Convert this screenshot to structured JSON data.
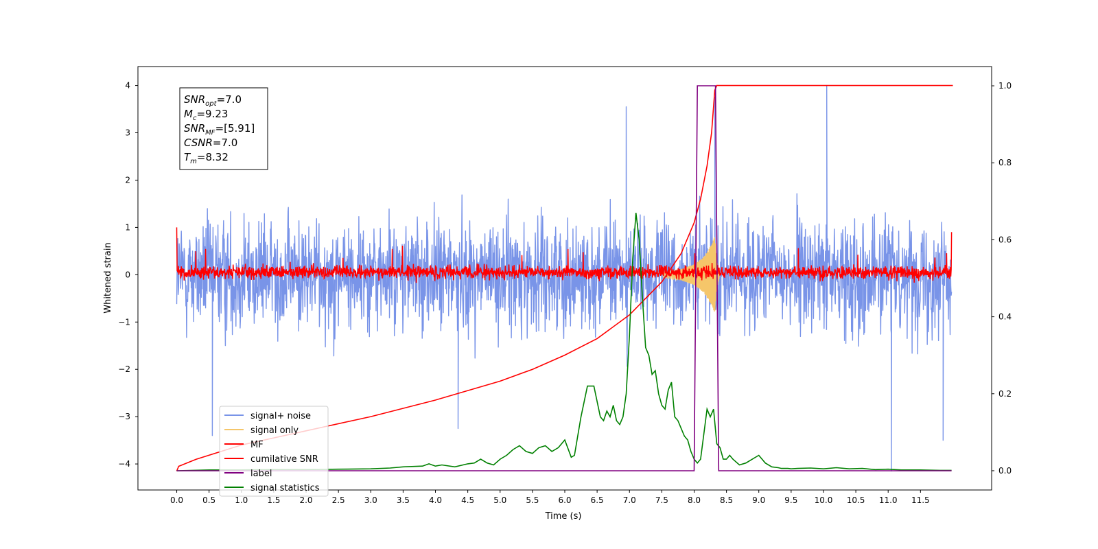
{
  "chart_data": {
    "type": "line",
    "xlabel": "Time (s)",
    "ylabel": "Whitened strain",
    "xlim": [
      -0.6,
      12.6
    ],
    "ylim": [
      -4.55,
      4.4
    ],
    "y2lim": [
      -0.05,
      1.05
    ],
    "x_ticks": [
      "0.0",
      "0.5",
      "1.0",
      "1.5",
      "2.0",
      "2.5",
      "3.0",
      "3.5",
      "4.0",
      "4.5",
      "5.0",
      "5.5",
      "6.0",
      "6.5",
      "7.0",
      "7.5",
      "8.0",
      "8.5",
      "9.0",
      "9.5",
      "10.0",
      "10.5",
      "11.0",
      "11.5"
    ],
    "x_tick_values": [
      0,
      0.5,
      1,
      1.5,
      2,
      2.5,
      3,
      3.5,
      4,
      4.5,
      5,
      5.5,
      6,
      6.5,
      7,
      7.5,
      8,
      8.5,
      9,
      9.5,
      10,
      10.5,
      11,
      11.5
    ],
    "y_ticks": [
      "−4",
      "−3",
      "−2",
      "−1",
      "0",
      "1",
      "2",
      "3",
      "4"
    ],
    "y_tick_values": [
      -4,
      -3,
      -2,
      -1,
      0,
      1,
      2,
      3,
      4
    ],
    "y2_ticks": [
      "0.0",
      "0.2",
      "0.4",
      "0.6",
      "0.8",
      "1.0"
    ],
    "y2_tick_values": [
      0,
      0.2,
      0.4,
      0.6,
      0.8,
      1.0
    ],
    "grid": false,
    "legend_position": "lower-left",
    "legend": [
      {
        "label": "signal+ noise",
        "color": "#7994e8"
      },
      {
        "label": "signal only",
        "color": "#f5c66a"
      },
      {
        "label": "MF",
        "color": "#ff0000"
      },
      {
        "label": "cumilative SNR",
        "color": "#ff0000"
      },
      {
        "label": "label",
        "color": "#800080"
      },
      {
        "label": "signal statistics",
        "color": "#008000"
      }
    ],
    "annotation": {
      "lines": [
        {
          "main": "SNR",
          "sub": "opt",
          "value": "=7.0"
        },
        {
          "main": "M",
          "sub": "c",
          "value": "=9.23"
        },
        {
          "main": "SNR",
          "sub": "MF",
          "value": "=[5.91]"
        },
        {
          "main": "CSNR",
          "sub": "",
          "value": "=7.0"
        },
        {
          "main": "T",
          "sub": "m",
          "value": "=8.32"
        }
      ]
    },
    "series": [
      {
        "name": "signal+ noise",
        "axis": "left",
        "color": "#7994e8",
        "x_range": [
          0,
          11.98
        ],
        "envelope_typical": [
          -1.6,
          1.6
        ],
        "extremes": [
          [
            0.55,
            -3.4
          ],
          [
            4.35,
            -3.25
          ],
          [
            6.95,
            3.55
          ],
          [
            8.32,
            3.75
          ],
          [
            10.05,
            4.0
          ],
          [
            11.05,
            -4.15
          ],
          [
            11.85,
            -3.5
          ]
        ]
      },
      {
        "name": "signal only",
        "axis": "left",
        "color": "#f5c66a",
        "x": [
          7.5,
          7.8,
          8.0,
          8.15,
          8.25,
          8.3,
          8.32,
          8.35,
          8.4
        ],
        "amplitude": [
          0.05,
          0.12,
          0.22,
          0.38,
          0.6,
          0.8,
          0.8,
          0.3,
          0.0
        ]
      },
      {
        "name": "MF",
        "axis": "left",
        "color": "#ff0000",
        "x_range": [
          0,
          11.98
        ],
        "envelope_typical": [
          -0.2,
          0.3
        ]
      },
      {
        "name": "cumilative SNR",
        "axis": "left",
        "color": "#ff0000",
        "x": [
          0,
          0.03,
          0.3,
          1,
          2,
          3,
          4,
          5,
          5.5,
          6,
          6.5,
          7,
          7.5,
          7.8,
          8.0,
          8.1,
          8.2,
          8.27,
          8.32,
          8.35,
          12.0
        ],
        "y": [
          -4.15,
          -4.05,
          -3.9,
          -3.6,
          -3.3,
          -3.0,
          -2.65,
          -2.25,
          -2.0,
          -1.7,
          -1.35,
          -0.85,
          -0.15,
          0.45,
          1.1,
          1.6,
          2.3,
          3.0,
          3.9,
          4.0,
          4.0
        ]
      },
      {
        "name": "label",
        "axis": "right",
        "color": "#800080",
        "x": [
          0,
          8.0,
          8.05,
          8.33,
          8.38,
          11.98
        ],
        "y": [
          0,
          0,
          1,
          1,
          0,
          0
        ]
      },
      {
        "name": "signal statistics",
        "axis": "right",
        "color": "#008000",
        "x": [
          0,
          0.5,
          1,
          1.5,
          2,
          2.5,
          3,
          3.3,
          3.5,
          3.8,
          3.9,
          4,
          4.1,
          4.3,
          4.5,
          4.6,
          4.7,
          4.8,
          4.9,
          5,
          5.1,
          5.2,
          5.3,
          5.4,
          5.5,
          5.6,
          5.7,
          5.8,
          5.9,
          6,
          6.1,
          6.15,
          6.25,
          6.35,
          6.45,
          6.55,
          6.6,
          6.65,
          6.7,
          6.75,
          6.8,
          6.85,
          6.9,
          6.95,
          7.0,
          7.05,
          7.1,
          7.15,
          7.2,
          7.25,
          7.3,
          7.35,
          7.4,
          7.45,
          7.5,
          7.55,
          7.6,
          7.65,
          7.7,
          7.75,
          7.8,
          7.85,
          7.9,
          7.95,
          8.0,
          8.05,
          8.1,
          8.2,
          8.25,
          8.3,
          8.35,
          8.4,
          8.45,
          8.5,
          8.55,
          8.6,
          8.7,
          8.8,
          8.9,
          9.0,
          9.1,
          9.2,
          9.3,
          9.35,
          9.45,
          9.5,
          9.6,
          9.8,
          10.0,
          10.2,
          10.4,
          10.6,
          10.8,
          11.0,
          11.2,
          11.5,
          11.8,
          11.98
        ],
        "y": [
          0.0,
          0.002,
          0.002,
          0.003,
          0.003,
          0.004,
          0.005,
          0.007,
          0.01,
          0.012,
          0.018,
          0.012,
          0.015,
          0.01,
          0.018,
          0.02,
          0.03,
          0.02,
          0.015,
          0.03,
          0.04,
          0.055,
          0.065,
          0.05,
          0.045,
          0.06,
          0.065,
          0.05,
          0.06,
          0.08,
          0.035,
          0.04,
          0.14,
          0.22,
          0.22,
          0.14,
          0.13,
          0.155,
          0.14,
          0.17,
          0.13,
          0.12,
          0.14,
          0.2,
          0.35,
          0.55,
          0.67,
          0.6,
          0.45,
          0.32,
          0.3,
          0.25,
          0.26,
          0.2,
          0.17,
          0.16,
          0.21,
          0.23,
          0.14,
          0.13,
          0.11,
          0.09,
          0.08,
          0.05,
          0.03,
          0.02,
          0.03,
          0.16,
          0.14,
          0.16,
          0.07,
          0.06,
          0.03,
          0.03,
          0.04,
          0.03,
          0.015,
          0.02,
          0.03,
          0.04,
          0.02,
          0.01,
          0.008,
          0.006,
          0.006,
          0.005,
          0.006,
          0.007,
          0.005,
          0.008,
          0.005,
          0.006,
          0.003,
          0.004,
          0.002,
          0.002,
          0.001,
          0.001
        ]
      }
    ]
  }
}
